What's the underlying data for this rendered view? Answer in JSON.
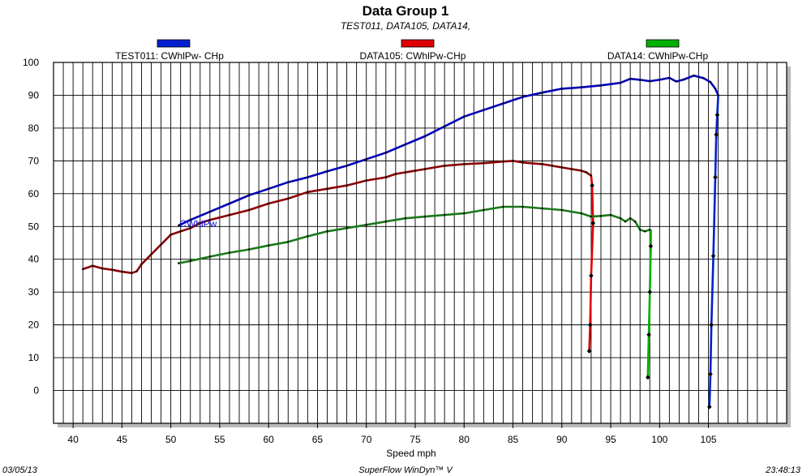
{
  "chart_data": {
    "type": "line",
    "title": "Data Group 1",
    "subtitle": "TEST011, DATA105, DATA14,",
    "xlabel": "Speed  mph",
    "ylabel": "",
    "xlim": [
      38,
      113
    ],
    "ylim": [
      -10,
      100
    ],
    "x_ticks": [
      40,
      45,
      50,
      55,
      60,
      65,
      70,
      75,
      80,
      85,
      90,
      95,
      100,
      105
    ],
    "y_ticks": [
      0,
      10,
      20,
      30,
      40,
      50,
      60,
      70,
      80,
      90,
      100
    ],
    "grid": true,
    "legend_position": "top",
    "series": [
      {
        "name": "TEST011: CWhlPw- CHp",
        "color": "#0000b8",
        "tail_color": "#0020d0",
        "points": [
          [
            50.8,
            50.3
          ],
          [
            52,
            52
          ],
          [
            54,
            54.5
          ],
          [
            56,
            57
          ],
          [
            58,
            59.5
          ],
          [
            60,
            61.5
          ],
          [
            62,
            63.5
          ],
          [
            64,
            65
          ],
          [
            66,
            66.8
          ],
          [
            68,
            68.5
          ],
          [
            70,
            70.5
          ],
          [
            72,
            72.5
          ],
          [
            74,
            75
          ],
          [
            76,
            77.5
          ],
          [
            78,
            80.5
          ],
          [
            80,
            83.5
          ],
          [
            82,
            85.5
          ],
          [
            84,
            87.5
          ],
          [
            86,
            89.5
          ],
          [
            88,
            90.8
          ],
          [
            90,
            92
          ],
          [
            92,
            92.4
          ],
          [
            94,
            93
          ],
          [
            96,
            93.8
          ],
          [
            97,
            95
          ],
          [
            98,
            94.7
          ],
          [
            99,
            94.3
          ],
          [
            100,
            94.7
          ],
          [
            101,
            95.3
          ],
          [
            101.7,
            94.2
          ],
          [
            102.5,
            94.8
          ],
          [
            103.5,
            96
          ],
          [
            104.5,
            95.2
          ],
          [
            105.2,
            94
          ],
          [
            105.7,
            92
          ],
          [
            106,
            90
          ]
        ],
        "tail_points": [
          [
            106,
            90
          ],
          [
            105.9,
            84
          ],
          [
            105.8,
            78
          ],
          [
            105.7,
            65
          ],
          [
            105.5,
            41
          ],
          [
            105.3,
            20
          ],
          [
            105.2,
            5
          ],
          [
            105.1,
            -5
          ]
        ]
      },
      {
        "name": "DATA105: CWhlPw-CHp",
        "color": "#8b0000",
        "tail_color": "#e00000",
        "points": [
          [
            41,
            37
          ],
          [
            42,
            38
          ],
          [
            43,
            37.2
          ],
          [
            44,
            36.8
          ],
          [
            45,
            36.2
          ],
          [
            46,
            35.8
          ],
          [
            46.5,
            36.3
          ],
          [
            47,
            38.5
          ],
          [
            48,
            41.5
          ],
          [
            49,
            44.5
          ],
          [
            50,
            47.5
          ],
          [
            51,
            48.5
          ],
          [
            52,
            49.5
          ],
          [
            53,
            51
          ],
          [
            54,
            52
          ],
          [
            56,
            53.5
          ],
          [
            58,
            55
          ],
          [
            60,
            57
          ],
          [
            62,
            58.5
          ],
          [
            64,
            60.5
          ],
          [
            66,
            61.5
          ],
          [
            68,
            62.5
          ],
          [
            70,
            64
          ],
          [
            72,
            65
          ],
          [
            73,
            66
          ],
          [
            74,
            66.5
          ],
          [
            75,
            67
          ],
          [
            76,
            67.5
          ],
          [
            78,
            68.5
          ],
          [
            80,
            69
          ],
          [
            82,
            69.3
          ],
          [
            84,
            69.8
          ],
          [
            85,
            70
          ],
          [
            86,
            69.5
          ],
          [
            88,
            69
          ],
          [
            89,
            68.5
          ],
          [
            90,
            68
          ],
          [
            91,
            67.5
          ],
          [
            92,
            67
          ],
          [
            92.5,
            66.5
          ],
          [
            93,
            65.5
          ]
        ],
        "tail_points": [
          [
            93,
            65.5
          ],
          [
            93.1,
            62.5
          ],
          [
            93.2,
            51
          ],
          [
            93,
            35
          ],
          [
            92.9,
            20
          ],
          [
            92.8,
            12
          ]
        ]
      },
      {
        "name": "DATA14: CWhlPw-CHp",
        "color": "#1a7a1a",
        "tail_color": "#00b000",
        "points": [
          [
            50.8,
            38.8
          ],
          [
            52,
            39.5
          ],
          [
            54,
            40.8
          ],
          [
            56,
            42
          ],
          [
            58,
            43
          ],
          [
            60,
            44.2
          ],
          [
            62,
            45.3
          ],
          [
            64,
            47
          ],
          [
            66,
            48.5
          ],
          [
            68,
            49.5
          ],
          [
            70,
            50.5
          ],
          [
            72,
            51.5
          ],
          [
            74,
            52.5
          ],
          [
            76,
            53
          ],
          [
            78,
            53.5
          ],
          [
            80,
            54
          ],
          [
            82,
            55
          ],
          [
            84,
            56
          ],
          [
            86,
            56
          ],
          [
            88,
            55.5
          ],
          [
            90,
            55
          ],
          [
            92,
            54
          ],
          [
            93,
            53
          ],
          [
            94,
            53.2
          ],
          [
            95,
            53.5
          ],
          [
            96,
            52.5
          ],
          [
            96.5,
            51.5
          ],
          [
            97,
            52.5
          ],
          [
            97.5,
            51.5
          ],
          [
            98,
            49
          ],
          [
            98.5,
            48.5
          ],
          [
            99,
            49
          ]
        ],
        "tail_points": [
          [
            99.1,
            49
          ],
          [
            99.1,
            44
          ],
          [
            99,
            30
          ],
          [
            98.9,
            17
          ],
          [
            98.8,
            4
          ]
        ]
      }
    ],
    "annotations": [
      {
        "text": "CWhlPw",
        "x": 50.8,
        "y": 50.8,
        "color": "#1010d0"
      }
    ]
  },
  "footer": {
    "date": "03/05/13",
    "software": "SuperFlow WinDyn™ V",
    "time": "23:48:13"
  }
}
